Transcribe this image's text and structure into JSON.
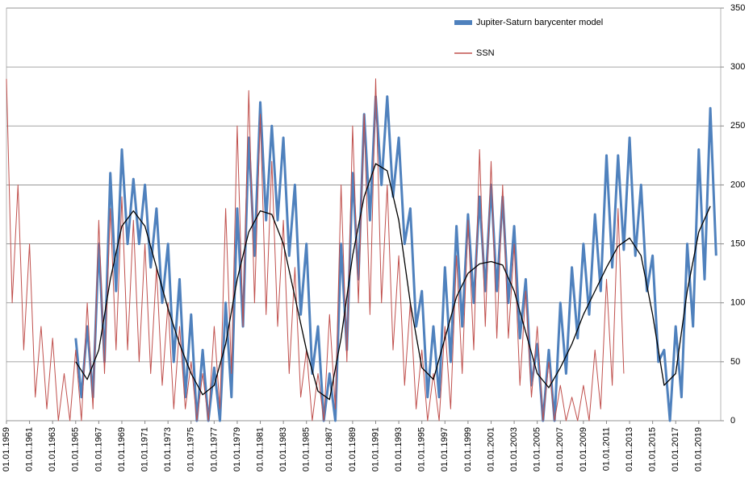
{
  "chart_data": {
    "type": "line",
    "xlim": [
      1959,
      2020.9
    ],
    "ylim": [
      0,
      350
    ],
    "yticks": [
      0,
      50,
      100,
      150,
      200,
      250,
      300,
      350
    ],
    "grid": true,
    "legend": "top-right",
    "xticks": [
      {
        "value": 1959,
        "label": "01.01.1959"
      },
      {
        "value": 1961,
        "label": "01.01.1961"
      },
      {
        "value": 1963,
        "label": "01.01.1963"
      },
      {
        "value": 1965,
        "label": "01.01.1965"
      },
      {
        "value": 1967,
        "label": "01.01.1967"
      },
      {
        "value": 1969,
        "label": "01.01.1969"
      },
      {
        "value": 1971,
        "label": "01.01.1971"
      },
      {
        "value": 1973,
        "label": "01.01.1973"
      },
      {
        "value": 1975,
        "label": "01.01.1975"
      },
      {
        "value": 1977,
        "label": "01.01.1977"
      },
      {
        "value": 1979,
        "label": "01.01.1979"
      },
      {
        "value": 1981,
        "label": "01.01.1981"
      },
      {
        "value": 1983,
        "label": "01.01.1983"
      },
      {
        "value": 1985,
        "label": "01.01.1985"
      },
      {
        "value": 1987,
        "label": "01.01.1987"
      },
      {
        "value": 1989,
        "label": "01.01.1989"
      },
      {
        "value": 1991,
        "label": "01.01.1991"
      },
      {
        "value": 1993,
        "label": "01.01.1993"
      },
      {
        "value": 1995,
        "label": "01.01.1995"
      },
      {
        "value": 1997,
        "label": "01.01.1997"
      },
      {
        "value": 1999,
        "label": "01.01.1999"
      },
      {
        "value": 2001,
        "label": "01.01.2001"
      },
      {
        "value": 2003,
        "label": "01.01.2003"
      },
      {
        "value": 2005,
        "label": "01.01.2005"
      },
      {
        "value": 2007,
        "label": "01.01.2007"
      },
      {
        "value": 2009,
        "label": "01.01.2009"
      },
      {
        "value": 2011,
        "label": "01.01.2011"
      },
      {
        "value": 2013,
        "label": "01.01.2013"
      },
      {
        "value": 2015,
        "label": "01.01.2015"
      },
      {
        "value": 2017,
        "label": "01.01.2017"
      },
      {
        "value": 2019,
        "label": "01.01.2019"
      }
    ],
    "series": [
      {
        "name": "Jupiter-Saturn barycenter model",
        "color": "#4f81bd",
        "x": [
          1965,
          1965.5,
          1966,
          1966.5,
          1967,
          1967.5,
          1968,
          1968.5,
          1969,
          1969.5,
          1970,
          1970.5,
          1971,
          1971.5,
          1972,
          1972.5,
          1973,
          1973.5,
          1974,
          1974.5,
          1975,
          1975.5,
          1976,
          1976.5,
          1977,
          1977.5,
          1978,
          1978.5,
          1979,
          1979.5,
          1980,
          1980.5,
          1981,
          1981.5,
          1982,
          1982.5,
          1983,
          1983.5,
          1984,
          1984.5,
          1985,
          1985.5,
          1986,
          1986.5,
          1987,
          1987.5,
          1988,
          1988.5,
          1989,
          1989.5,
          1990,
          1990.5,
          1991,
          1991.5,
          1992,
          1992.5,
          1993,
          1993.5,
          1994,
          1994.5,
          1995,
          1995.5,
          1996,
          1996.5,
          1997,
          1997.5,
          1998,
          1998.5,
          1999,
          1999.5,
          2000,
          2000.5,
          2001,
          2001.5,
          2002,
          2002.5,
          2003,
          2003.5,
          2004,
          2004.5,
          2005,
          2005.5,
          2006,
          2006.5,
          2007,
          2007.5,
          2008,
          2008.5,
          2009,
          2009.5,
          2010,
          2010.5,
          2011,
          2011.5,
          2012,
          2012.5,
          2013,
          2013.5,
          2014,
          2014.5,
          2015,
          2015.5,
          2016,
          2016.5,
          2017,
          2017.5,
          2018,
          2018.5,
          2019,
          2019.5,
          2020,
          2020.5
        ],
        "values": [
          70,
          20,
          80,
          20,
          150,
          50,
          210,
          110,
          230,
          150,
          205,
          150,
          200,
          130,
          180,
          100,
          150,
          50,
          120,
          20,
          90,
          0,
          60,
          0,
          45,
          0,
          100,
          20,
          180,
          80,
          240,
          140,
          270,
          170,
          250,
          170,
          240,
          140,
          200,
          90,
          150,
          40,
          80,
          0,
          40,
          0,
          150,
          60,
          210,
          120,
          260,
          170,
          275,
          200,
          275,
          190,
          240,
          150,
          180,
          80,
          110,
          20,
          80,
          20,
          130,
          50,
          165,
          80,
          175,
          100,
          190,
          110,
          200,
          110,
          190,
          100,
          165,
          70,
          120,
          30,
          65,
          0,
          60,
          0,
          100,
          40,
          130,
          70,
          150,
          90,
          175,
          110,
          225,
          130,
          225,
          145,
          240,
          140,
          200,
          110,
          140,
          50,
          60,
          0,
          80,
          20,
          150,
          80,
          230,
          120,
          265,
          140
        ]
      },
      {
        "name": "SSN",
        "color": "#c0504d",
        "x": [
          1959,
          1959.5,
          1960,
          1960.5,
          1961,
          1961.5,
          1962,
          1962.5,
          1963,
          1963.5,
          1964,
          1964.5,
          1965,
          1965.5,
          1966,
          1966.5,
          1967,
          1967.5,
          1968,
          1968.5,
          1969,
          1969.5,
          1970,
          1970.5,
          1971,
          1971.5,
          1972,
          1972.5,
          1973,
          1973.5,
          1974,
          1974.5,
          1975,
          1975.5,
          1976,
          1976.5,
          1977,
          1977.5,
          1978,
          1978.5,
          1979,
          1979.5,
          1980,
          1980.5,
          1981,
          1981.5,
          1982,
          1982.5,
          1983,
          1983.5,
          1984,
          1984.5,
          1985,
          1985.5,
          1986,
          1986.5,
          1987,
          1987.5,
          1988,
          1988.5,
          1989,
          1989.5,
          1990,
          1990.5,
          1991,
          1991.5,
          1992,
          1992.5,
          1993,
          1993.5,
          1994,
          1994.5,
          1995,
          1995.5,
          1996,
          1996.5,
          1997,
          1997.5,
          1998,
          1998.5,
          1999,
          1999.5,
          2000,
          2000.5,
          2001,
          2001.5,
          2002,
          2002.5,
          2003,
          2003.5,
          2004,
          2004.5,
          2005,
          2005.5,
          2006,
          2006.5,
          2007,
          2007.5,
          2008,
          2008.5,
          2009,
          2009.5,
          2010,
          2010.5,
          2011,
          2011.5,
          2012,
          2012.5
        ],
        "values": [
          290,
          100,
          200,
          60,
          150,
          20,
          80,
          10,
          70,
          0,
          40,
          0,
          60,
          0,
          100,
          10,
          170,
          40,
          180,
          60,
          190,
          60,
          170,
          50,
          150,
          40,
          130,
          30,
          100,
          10,
          80,
          10,
          50,
          0,
          40,
          0,
          80,
          10,
          180,
          40,
          250,
          80,
          280,
          100,
          260,
          90,
          220,
          80,
          170,
          40,
          130,
          20,
          60,
          0,
          40,
          0,
          90,
          10,
          200,
          50,
          250,
          100,
          260,
          90,
          290,
          100,
          200,
          60,
          140,
          30,
          100,
          10,
          60,
          0,
          40,
          0,
          80,
          10,
          140,
          40,
          170,
          60,
          230,
          80,
          220,
          70,
          200,
          70,
          150,
          30,
          110,
          20,
          80,
          0,
          50,
          0,
          30,
          0,
          20,
          0,
          30,
          0,
          60,
          10,
          120,
          30,
          180,
          40
        ]
      },
      {
        "color": "#000000",
        "x": [
          1965,
          1966,
          1967,
          1968,
          1969,
          1970,
          1971,
          1972,
          1973,
          1974,
          1975,
          1976,
          1977,
          1978,
          1979,
          1980,
          1981,
          1982,
          1983,
          1984,
          1985,
          1986,
          1987,
          1988,
          1989,
          1990,
          1991,
          1992,
          1993,
          1994,
          1995,
          1996,
          1997,
          1998,
          1999,
          2000,
          2001,
          2002,
          2003,
          2004,
          2005,
          2006,
          2007,
          2008,
          2009,
          2010,
          2011,
          2012,
          2013,
          2014,
          2015,
          2016,
          2017,
          2018,
          2019,
          2020
        ],
        "values": [
          50,
          35,
          60,
          120,
          165,
          178,
          165,
          130,
          95,
          65,
          40,
          22,
          30,
          65,
          120,
          160,
          178,
          175,
          150,
          105,
          60,
          25,
          18,
          70,
          140,
          190,
          218,
          212,
          170,
          100,
          45,
          35,
          70,
          105,
          125,
          133,
          135,
          132,
          110,
          75,
          40,
          28,
          45,
          65,
          90,
          110,
          130,
          148,
          155,
          140,
          90,
          30,
          40,
          110,
          160,
          182
        ]
      }
    ]
  }
}
